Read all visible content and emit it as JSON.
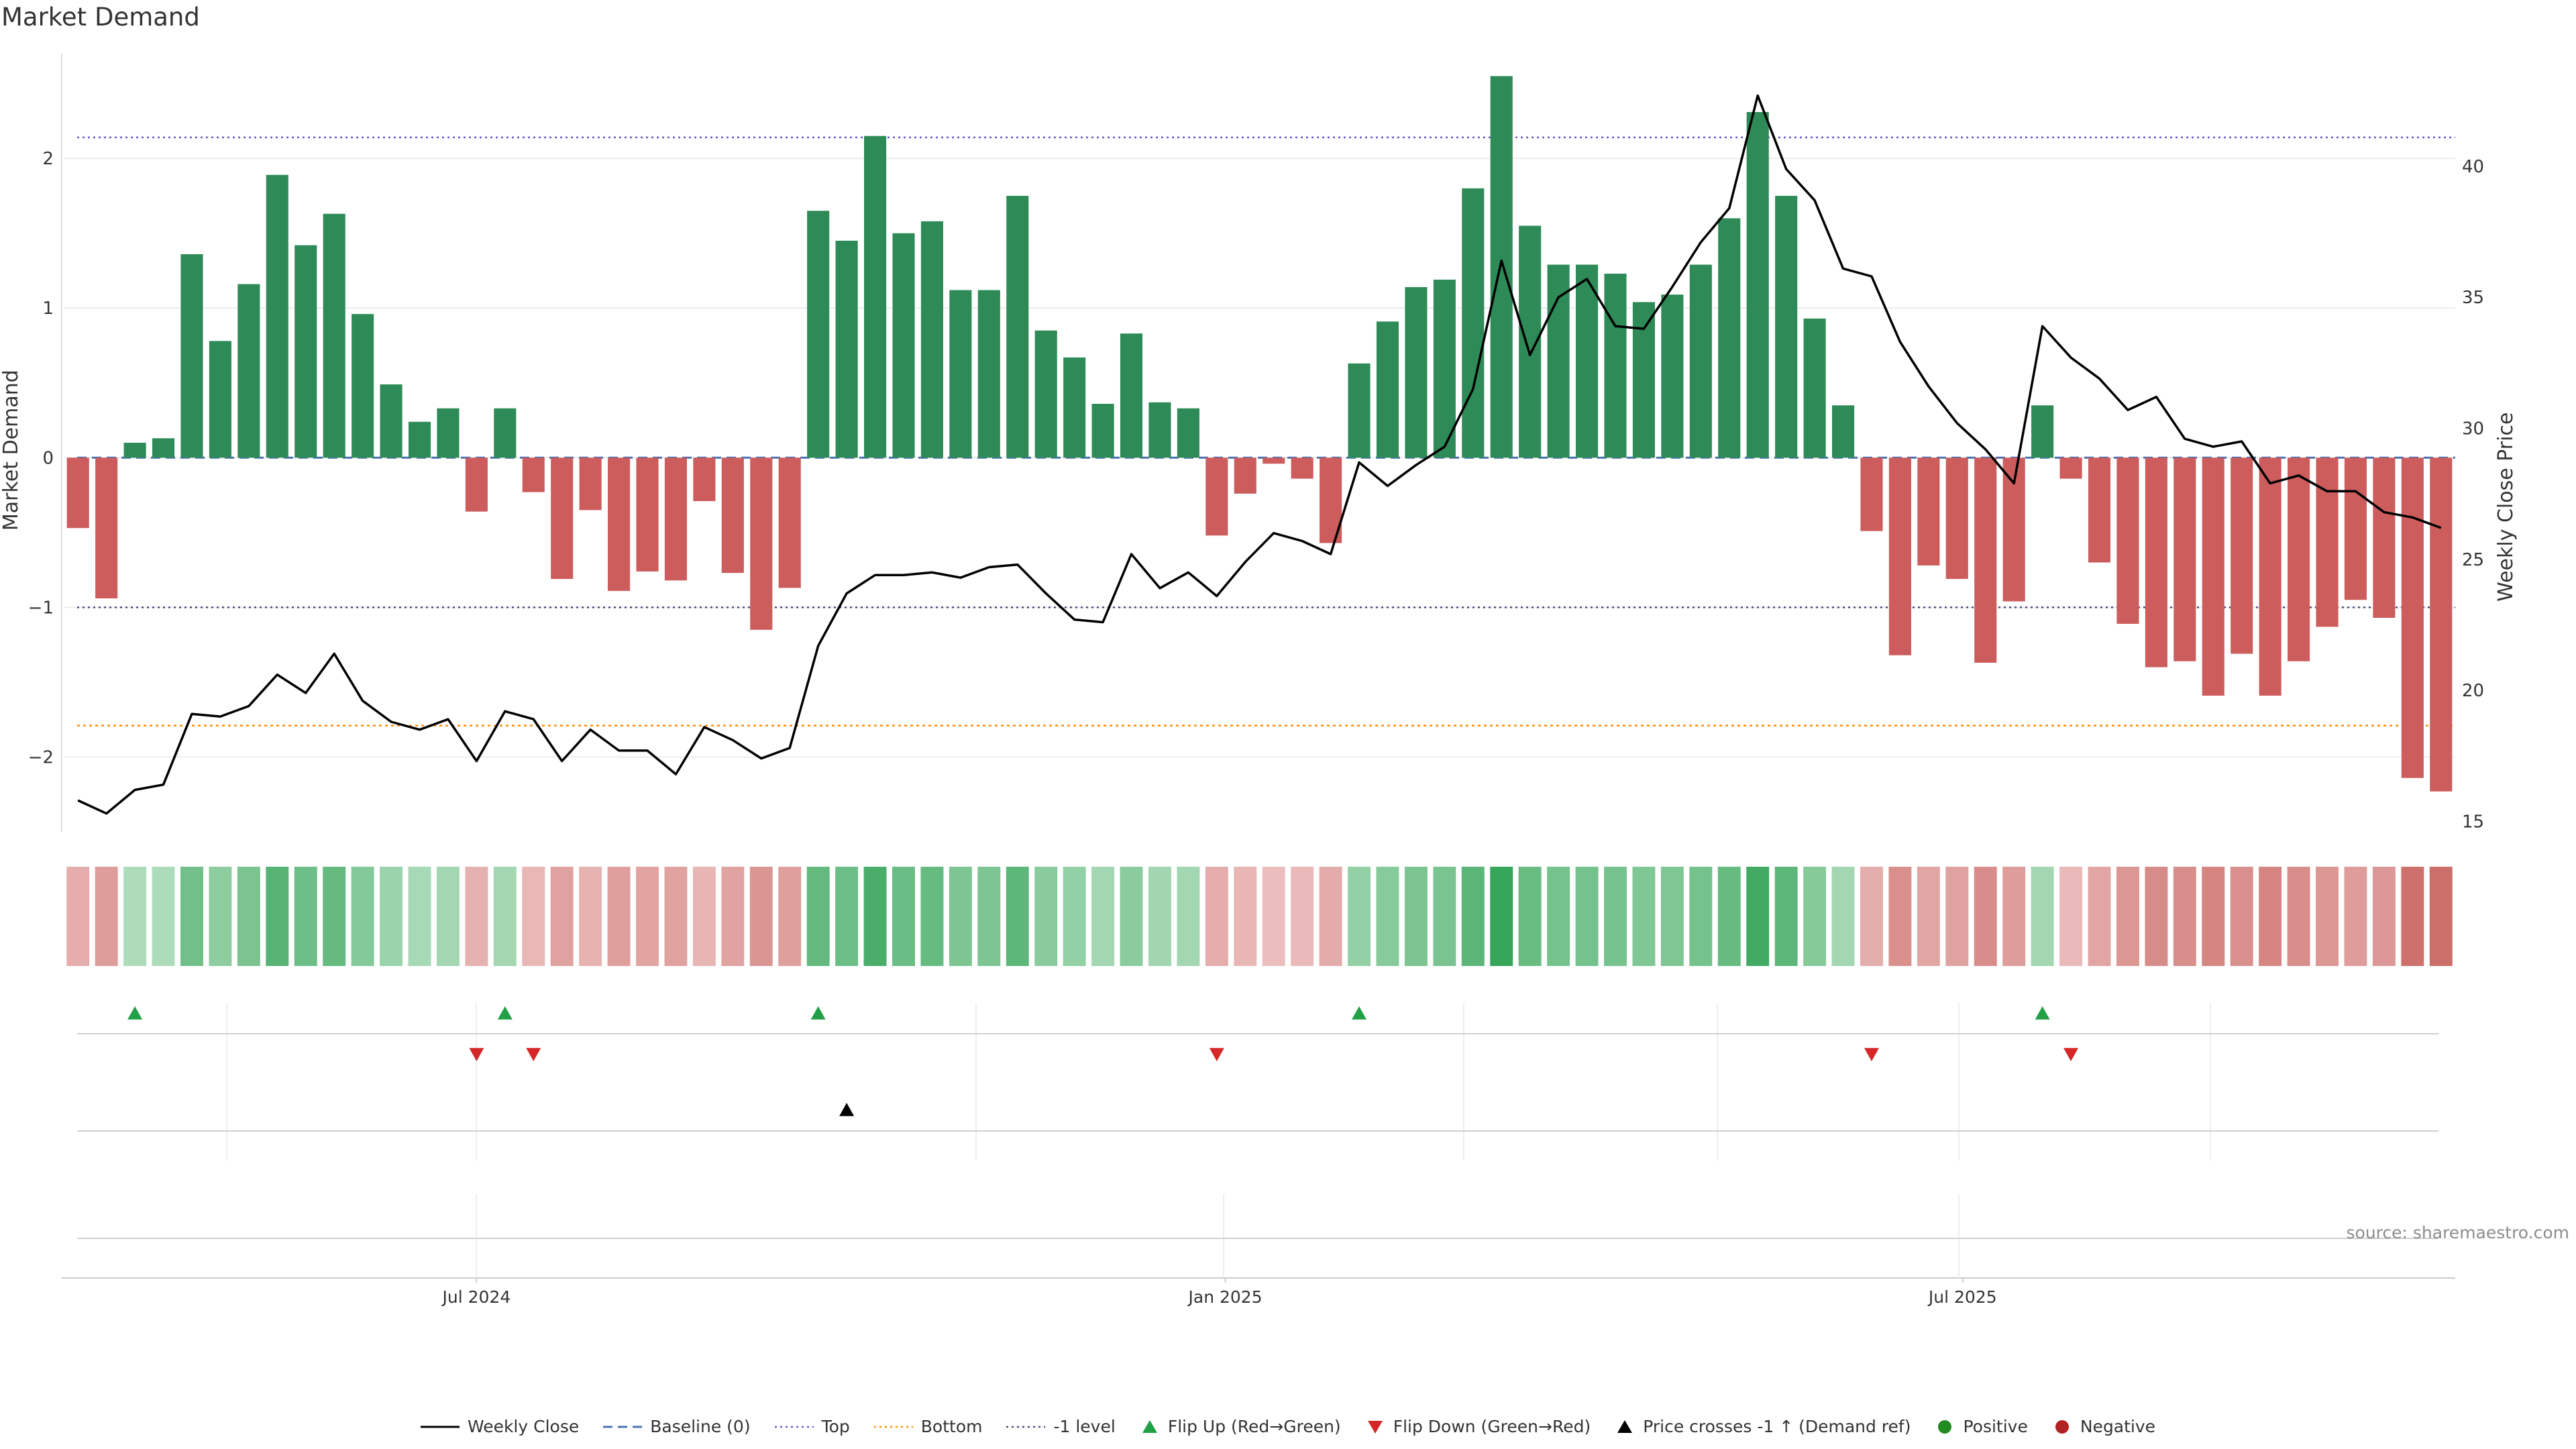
{
  "title": "Market Demand",
  "source": "source: sharemaestro.com",
  "colors": {
    "positive_bar": "#2e8b57",
    "negative_bar": "#cd5c5c",
    "price_line": "#000000",
    "baseline": "#4c72b0",
    "top_line": "#6a5acd",
    "bottom_line": "#ff8c00",
    "minus1_line": "#4b4b7a",
    "flip_up": "#22a046",
    "flip_down": "#d62728",
    "cross_marker": "#000000",
    "positive_dot": "#228b22",
    "negative_dot": "#b22222"
  },
  "legend": [
    {
      "label": "Weekly Close",
      "symbol": "line",
      "color": "#000000"
    },
    {
      "label": "Baseline (0)",
      "symbol": "dash",
      "color": "#4c72b0"
    },
    {
      "label": "Top",
      "symbol": "dot",
      "color": "#6a5acd"
    },
    {
      "label": "Bottom",
      "symbol": "dot",
      "color": "#ff8c00"
    },
    {
      "label": "-1 level",
      "symbol": "dot",
      "color": "#4b4b7a"
    },
    {
      "label": "Flip Up (Red→Green)",
      "symbol": "tri-up",
      "color": "#22a046"
    },
    {
      "label": "Flip Down (Green→Red)",
      "symbol": "tri-down",
      "color": "#d62728"
    },
    {
      "label": "Price crosses -1 ↑ (Demand ref)",
      "symbol": "tri-up",
      "color": "#000000"
    },
    {
      "label": "Positive",
      "symbol": "circle",
      "color": "#228b22"
    },
    {
      "label": "Negative",
      "symbol": "circle",
      "color": "#b22222"
    }
  ],
  "chart_data": {
    "type": "bar",
    "title": "Market Demand",
    "ylabel": "Market Demand",
    "y2label": "Weekly Close Price",
    "ylim": [
      -2.5,
      2.7
    ],
    "y2lim": [
      14.6,
      44.3
    ],
    "yticks": [
      -2,
      -1,
      0,
      1,
      2
    ],
    "ytick_labels": [
      "−2",
      "−1",
      "0",
      "1",
      "2"
    ],
    "y2ticks": [
      15,
      20,
      25,
      30,
      35,
      40
    ],
    "y2tick_labels": [
      "15",
      "20",
      "25",
      "30",
      "35",
      "40"
    ],
    "xlabels": [
      {
        "label": "Jul 2024",
        "week": 14.5
      },
      {
        "label": "Jan 2025",
        "week": 40.8
      },
      {
        "label": "Jul 2025",
        "week": 66.7
      }
    ],
    "reference_lines": {
      "top": 2.14,
      "bottom": -1.79,
      "minus_one": -1,
      "baseline": 0
    },
    "weeks": 84,
    "series": [
      {
        "name": "Market Demand",
        "values": [
          -0.47,
          -0.94,
          0.1,
          0.13,
          1.36,
          0.78,
          1.16,
          1.89,
          1.42,
          1.63,
          0.96,
          0.49,
          0.24,
          0.33,
          -0.36,
          0.33,
          -0.23,
          -0.81,
          -0.35,
          -0.89,
          -0.76,
          -0.82,
          -0.29,
          -0.77,
          -1.15,
          -0.87,
          1.65,
          1.45,
          2.15,
          1.5,
          1.58,
          1.12,
          1.12,
          1.75,
          0.85,
          0.67,
          0.36,
          0.83,
          0.37,
          0.33,
          -0.52,
          -0.24,
          -0.04,
          -0.14,
          -0.57,
          0.63,
          0.91,
          1.14,
          1.19,
          1.8,
          2.55,
          1.55,
          1.29,
          1.29,
          1.23,
          1.04,
          1.09,
          1.29,
          1.6,
          2.31,
          1.75,
          0.93,
          0.35,
          -0.49,
          -1.32,
          -0.72,
          -0.81,
          -1.37,
          -0.96,
          0.35,
          -0.14,
          -0.7,
          -1.11,
          -1.4,
          -1.36,
          -1.59,
          -1.31,
          -1.59,
          -1.36,
          -1.13,
          -0.95,
          -1.07,
          -2.14,
          -2.23
        ]
      },
      {
        "name": "Weekly Close",
        "values": [
          15.8,
          15.3,
          16.2,
          16.4,
          19.1,
          19.0,
          19.4,
          20.6,
          19.9,
          21.4,
          19.6,
          18.8,
          18.5,
          18.9,
          17.3,
          19.2,
          18.9,
          17.3,
          18.5,
          17.7,
          17.7,
          16.8,
          18.6,
          18.1,
          17.4,
          17.8,
          21.7,
          23.7,
          24.4,
          24.4,
          24.5,
          24.3,
          24.7,
          24.8,
          23.7,
          22.7,
          22.6,
          25.2,
          23.9,
          24.5,
          23.6,
          24.9,
          26.0,
          25.7,
          25.2,
          28.7,
          27.8,
          28.6,
          29.3,
          31.5,
          36.4,
          32.8,
          35.0,
          35.7,
          33.9,
          33.8,
          35.4,
          37.1,
          38.4,
          42.7,
          39.9,
          38.7,
          36.1,
          35.8,
          33.3,
          31.6,
          30.2,
          29.2,
          27.9,
          33.9,
          32.7,
          31.9,
          30.7,
          31.2,
          29.6,
          29.3,
          29.5,
          27.9,
          28.2,
          27.6,
          27.6,
          26.8,
          26.6,
          26.2
        ]
      }
    ],
    "flip_up_weeks": [
      2,
      15,
      26,
      45,
      69
    ],
    "flip_down_weeks": [
      14,
      16,
      40,
      63,
      70
    ],
    "price_cross_weeks": [
      27
    ]
  }
}
